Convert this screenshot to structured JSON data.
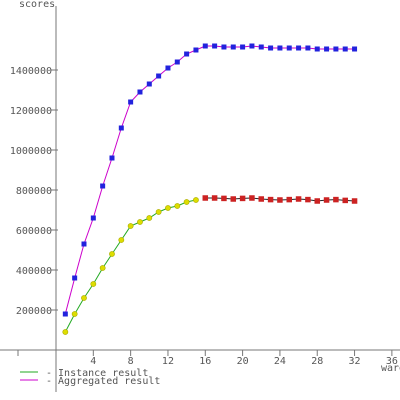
{
  "chart_data": {
    "type": "line",
    "title": "",
    "xlabel": "wares",
    "ylabel": "scores",
    "xlim": [
      0,
      36
    ],
    "ylim": [
      0,
      1600000
    ],
    "grid": false,
    "legend_position": "bottom-left",
    "x_ticks": [
      4,
      8,
      12,
      16,
      20,
      24,
      28,
      32,
      36
    ],
    "y_ticks": [
      200000,
      400000,
      600000,
      800000,
      1000000,
      1200000,
      1400000
    ],
    "x_tick_labels": [
      "4",
      "8",
      "12",
      "16",
      "20",
      "24",
      "28",
      "32",
      "36"
    ],
    "y_tick_labels": [
      "200000",
      "400000",
      "600000",
      "800000",
      "1000000",
      "1200000",
      "1400000"
    ],
    "series": [
      {
        "name": "Instance result",
        "line_color": "#22aa22",
        "marker_color": "#dddd00",
        "x": [
          1,
          2,
          3,
          4,
          5,
          6,
          7,
          8,
          9,
          10,
          11,
          12,
          13,
          14,
          15
        ],
        "y": [
          90000,
          180000,
          260000,
          330000,
          410000,
          480000,
          550000,
          620000,
          640000,
          660000,
          690000,
          710000,
          720000,
          740000,
          750000
        ]
      },
      {
        "name": "Aggregated result",
        "line_color": "#cc00cc",
        "marker_color": "#2222dd",
        "x": [
          1,
          2,
          3,
          4,
          5,
          6,
          7,
          8,
          9,
          10,
          11,
          12,
          13,
          14,
          15,
          16,
          17,
          18,
          19,
          20,
          21,
          22,
          23,
          24,
          25,
          26,
          27,
          28,
          29,
          30,
          31,
          32
        ],
        "y": [
          180000,
          360000,
          530000,
          660000,
          820000,
          960000,
          1110000,
          1240000,
          1290000,
          1330000,
          1370000,
          1410000,
          1440000,
          1480000,
          1500000,
          1520000,
          1520000,
          1515000,
          1515000,
          1515000,
          1520000,
          1515000,
          1510000,
          1510000,
          1510000,
          1510000,
          1510000,
          1505000,
          1505000,
          1505000,
          1505000,
          1505000
        ]
      },
      {
        "name": "",
        "line_color": "#222222",
        "marker_color": "#cc2222",
        "x": [
          16,
          17,
          18,
          19,
          20,
          21,
          22,
          23,
          24,
          25,
          26,
          27,
          28,
          29,
          30,
          31,
          32
        ],
        "y": [
          760000,
          760000,
          758000,
          755000,
          758000,
          760000,
          755000,
          752000,
          750000,
          752000,
          755000,
          752000,
          745000,
          750000,
          752000,
          748000,
          745000
        ]
      }
    ]
  }
}
